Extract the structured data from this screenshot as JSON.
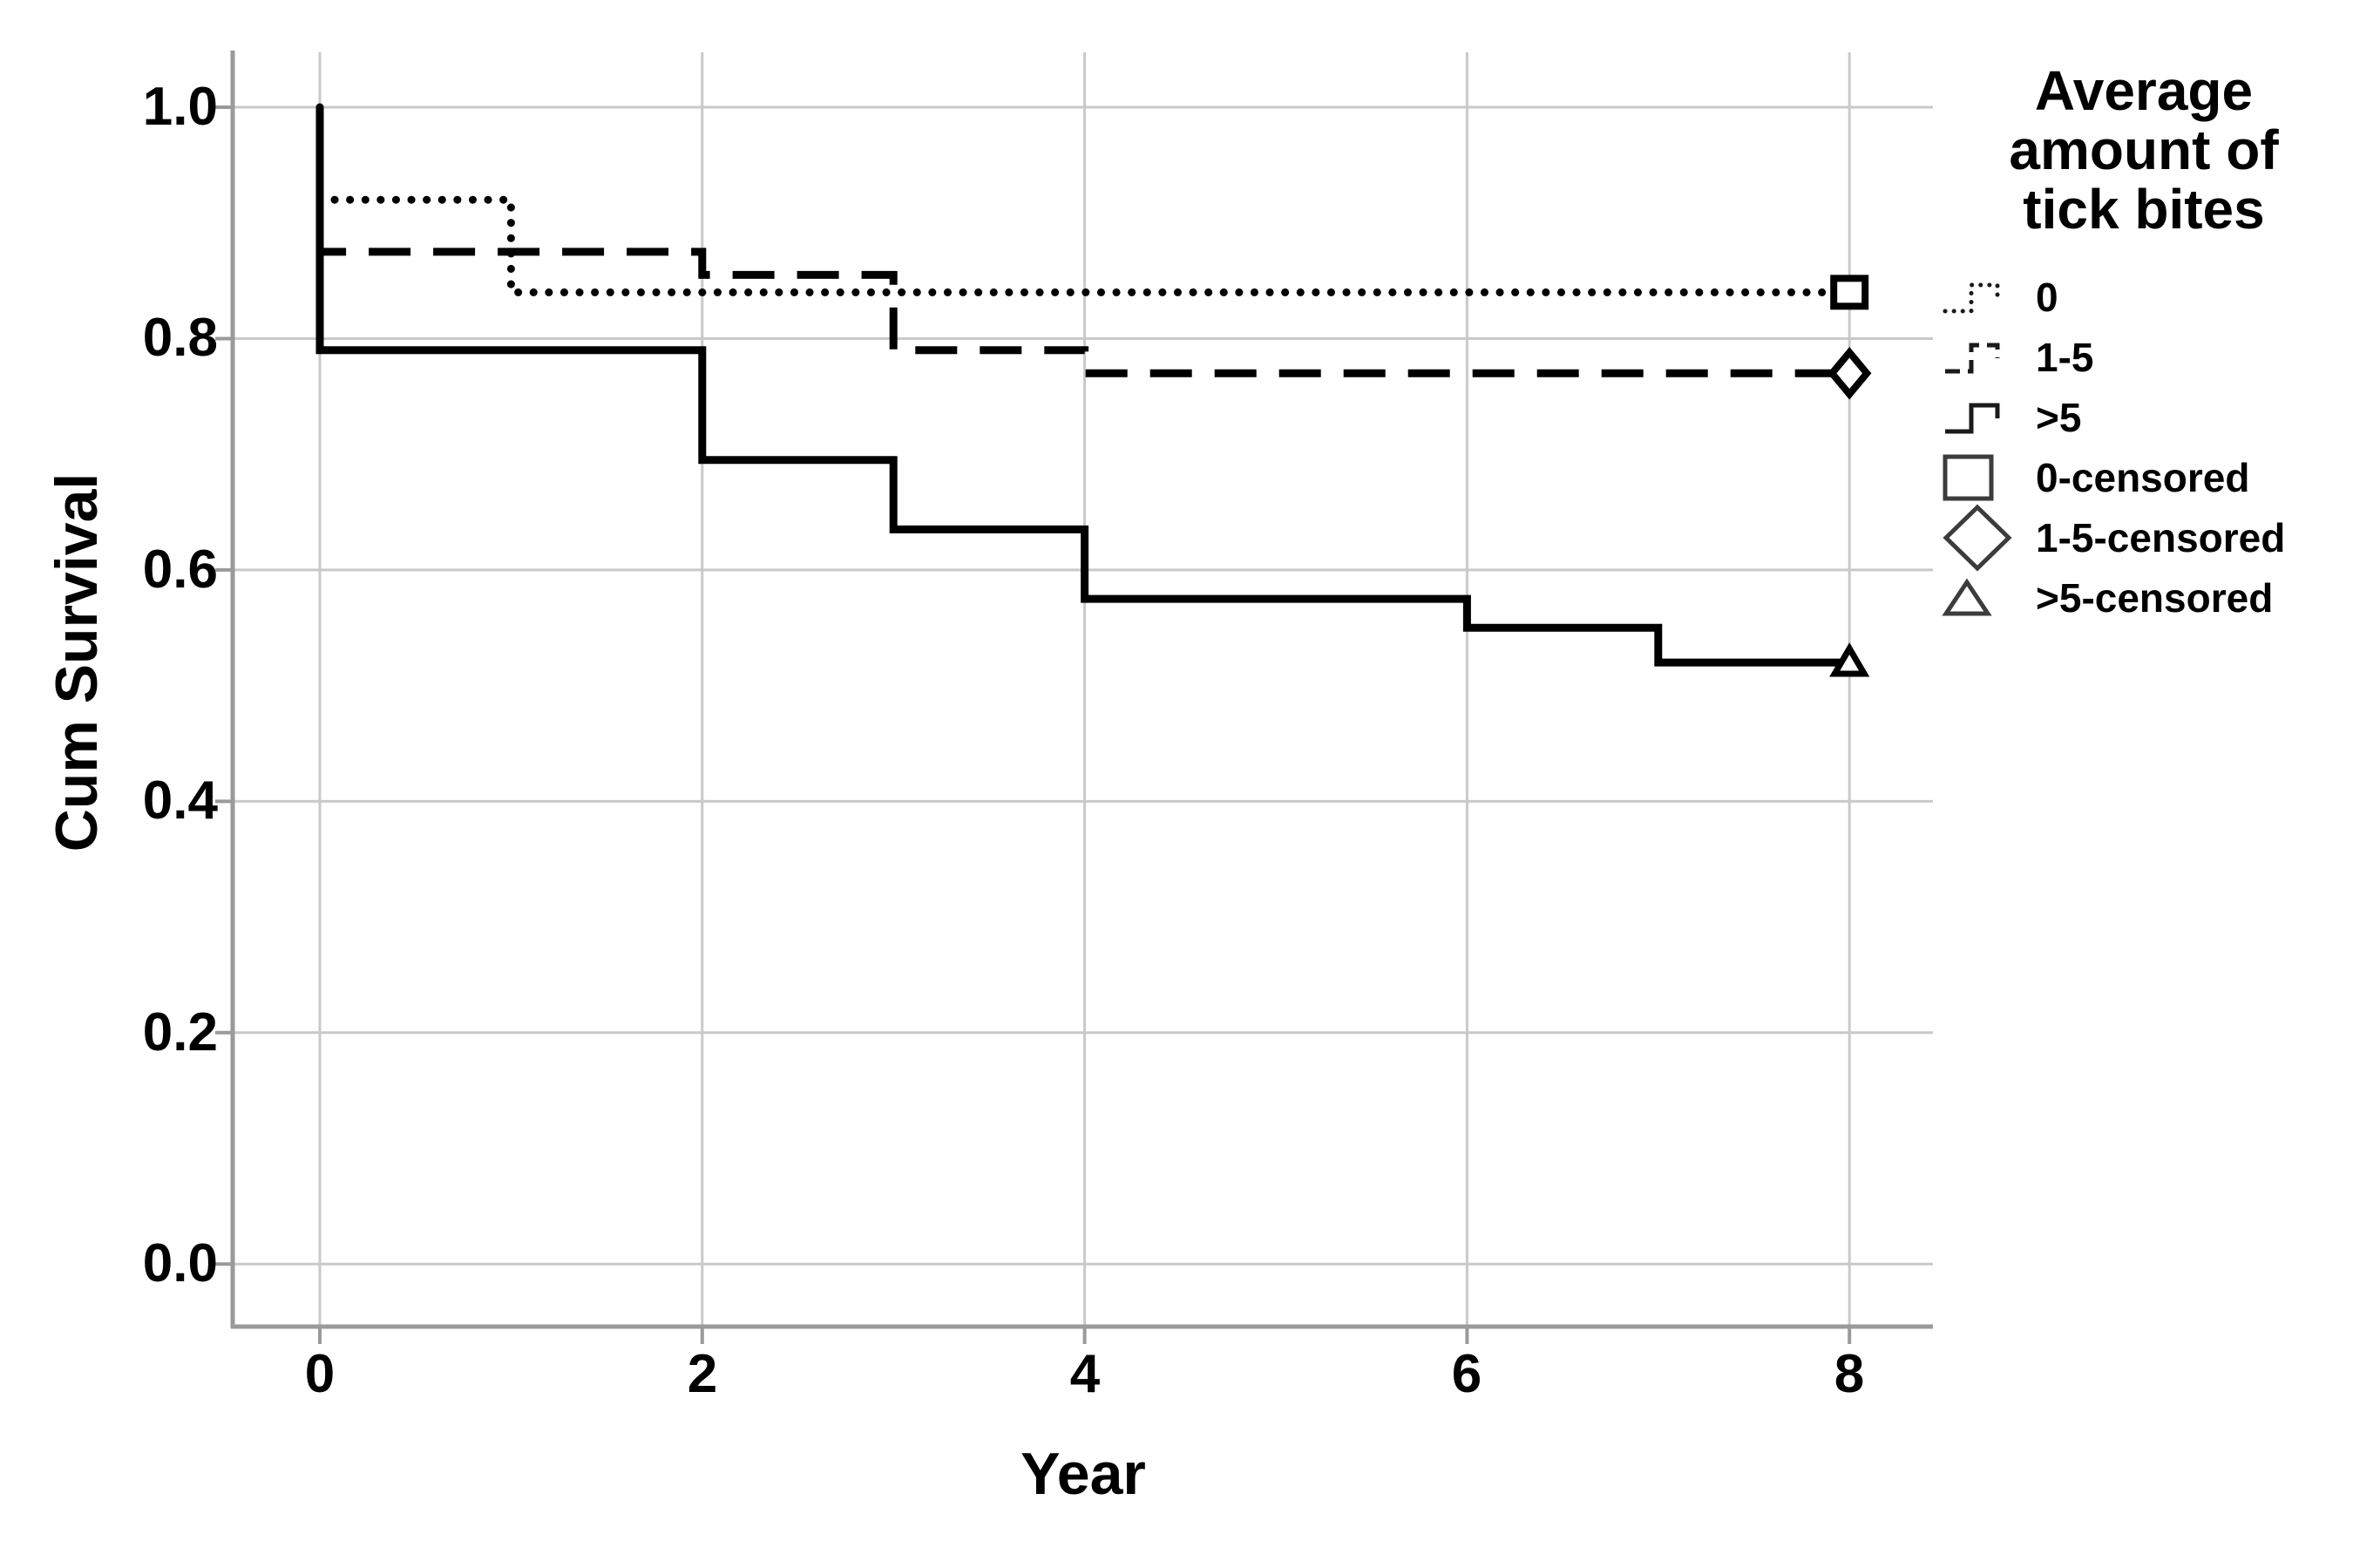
{
  "figure": {
    "background": "#ffffff"
  },
  "chart_data": {
    "type": "line",
    "subtype": "kaplan-meier-step-survival",
    "title": "",
    "xlabel": "Year",
    "ylabel": "Cum Survival",
    "xticks": [
      "0",
      "2",
      "4",
      "6",
      "8"
    ],
    "yticks": [
      "1.0",
      "0.8",
      "0.6",
      "0.4",
      "0.2",
      "0.0"
    ],
    "xtick_values": [
      0,
      2,
      4,
      6,
      8
    ],
    "ytick_values": [
      1.0,
      0.8,
      0.6,
      0.4,
      0.2,
      0.0
    ],
    "xlim": [
      -0.46,
      8.44
    ],
    "ylim": [
      -0.055,
      1.047
    ],
    "grid": true,
    "legend_position": "right",
    "series": [
      {
        "name": "0",
        "style": "dotted",
        "points": [
          [
            0,
            1.0
          ],
          [
            0,
            0.92
          ],
          [
            1,
            0.92
          ],
          [
            1,
            0.84
          ],
          [
            8,
            0.84
          ]
        ],
        "end_marker": "square"
      },
      {
        "name": "1-5",
        "style": "dashed",
        "points": [
          [
            0,
            1.0
          ],
          [
            0,
            0.875
          ],
          [
            2,
            0.875
          ],
          [
            2,
            0.855
          ],
          [
            3,
            0.855
          ],
          [
            3,
            0.79
          ],
          [
            4,
            0.79
          ],
          [
            4,
            0.77
          ],
          [
            8,
            0.77
          ]
        ],
        "end_marker": "diamond"
      },
      {
        "name": ">5",
        "style": "solid",
        "points": [
          [
            0,
            1.0
          ],
          [
            0,
            0.79
          ],
          [
            2,
            0.79
          ],
          [
            2,
            0.695
          ],
          [
            3,
            0.695
          ],
          [
            3,
            0.635
          ],
          [
            4,
            0.635
          ],
          [
            4,
            0.575
          ],
          [
            6,
            0.575
          ],
          [
            6,
            0.55
          ],
          [
            7,
            0.55
          ],
          [
            7,
            0.52
          ],
          [
            8,
            0.52
          ]
        ],
        "end_marker": "triangle"
      }
    ],
    "censored_markers": [
      {
        "shape": "square",
        "x": 8,
        "y": 0.84
      },
      {
        "shape": "diamond",
        "x": 8,
        "y": 0.77
      },
      {
        "shape": "triangle",
        "x": 8,
        "y": 0.52
      }
    ],
    "colors": {
      "line": "#000000",
      "grid": "#c9c9c9",
      "axis": "#9a9a9a",
      "text": "#000000",
      "background": "#ffffff"
    }
  },
  "legend": {
    "title": "Average amount of tick bites",
    "items": [
      {
        "label": "0",
        "glyph": "dotted-step-line"
      },
      {
        "label": "1-5",
        "glyph": "dashed-step-line"
      },
      {
        "label": ">5",
        "glyph": "solid-step-line"
      },
      {
        "label": "0-censored",
        "glyph": "square-marker"
      },
      {
        "label": "1-5-censored",
        "glyph": "diamond-marker"
      },
      {
        "label": ">5-censored",
        "glyph": "triangle-marker"
      }
    ]
  }
}
